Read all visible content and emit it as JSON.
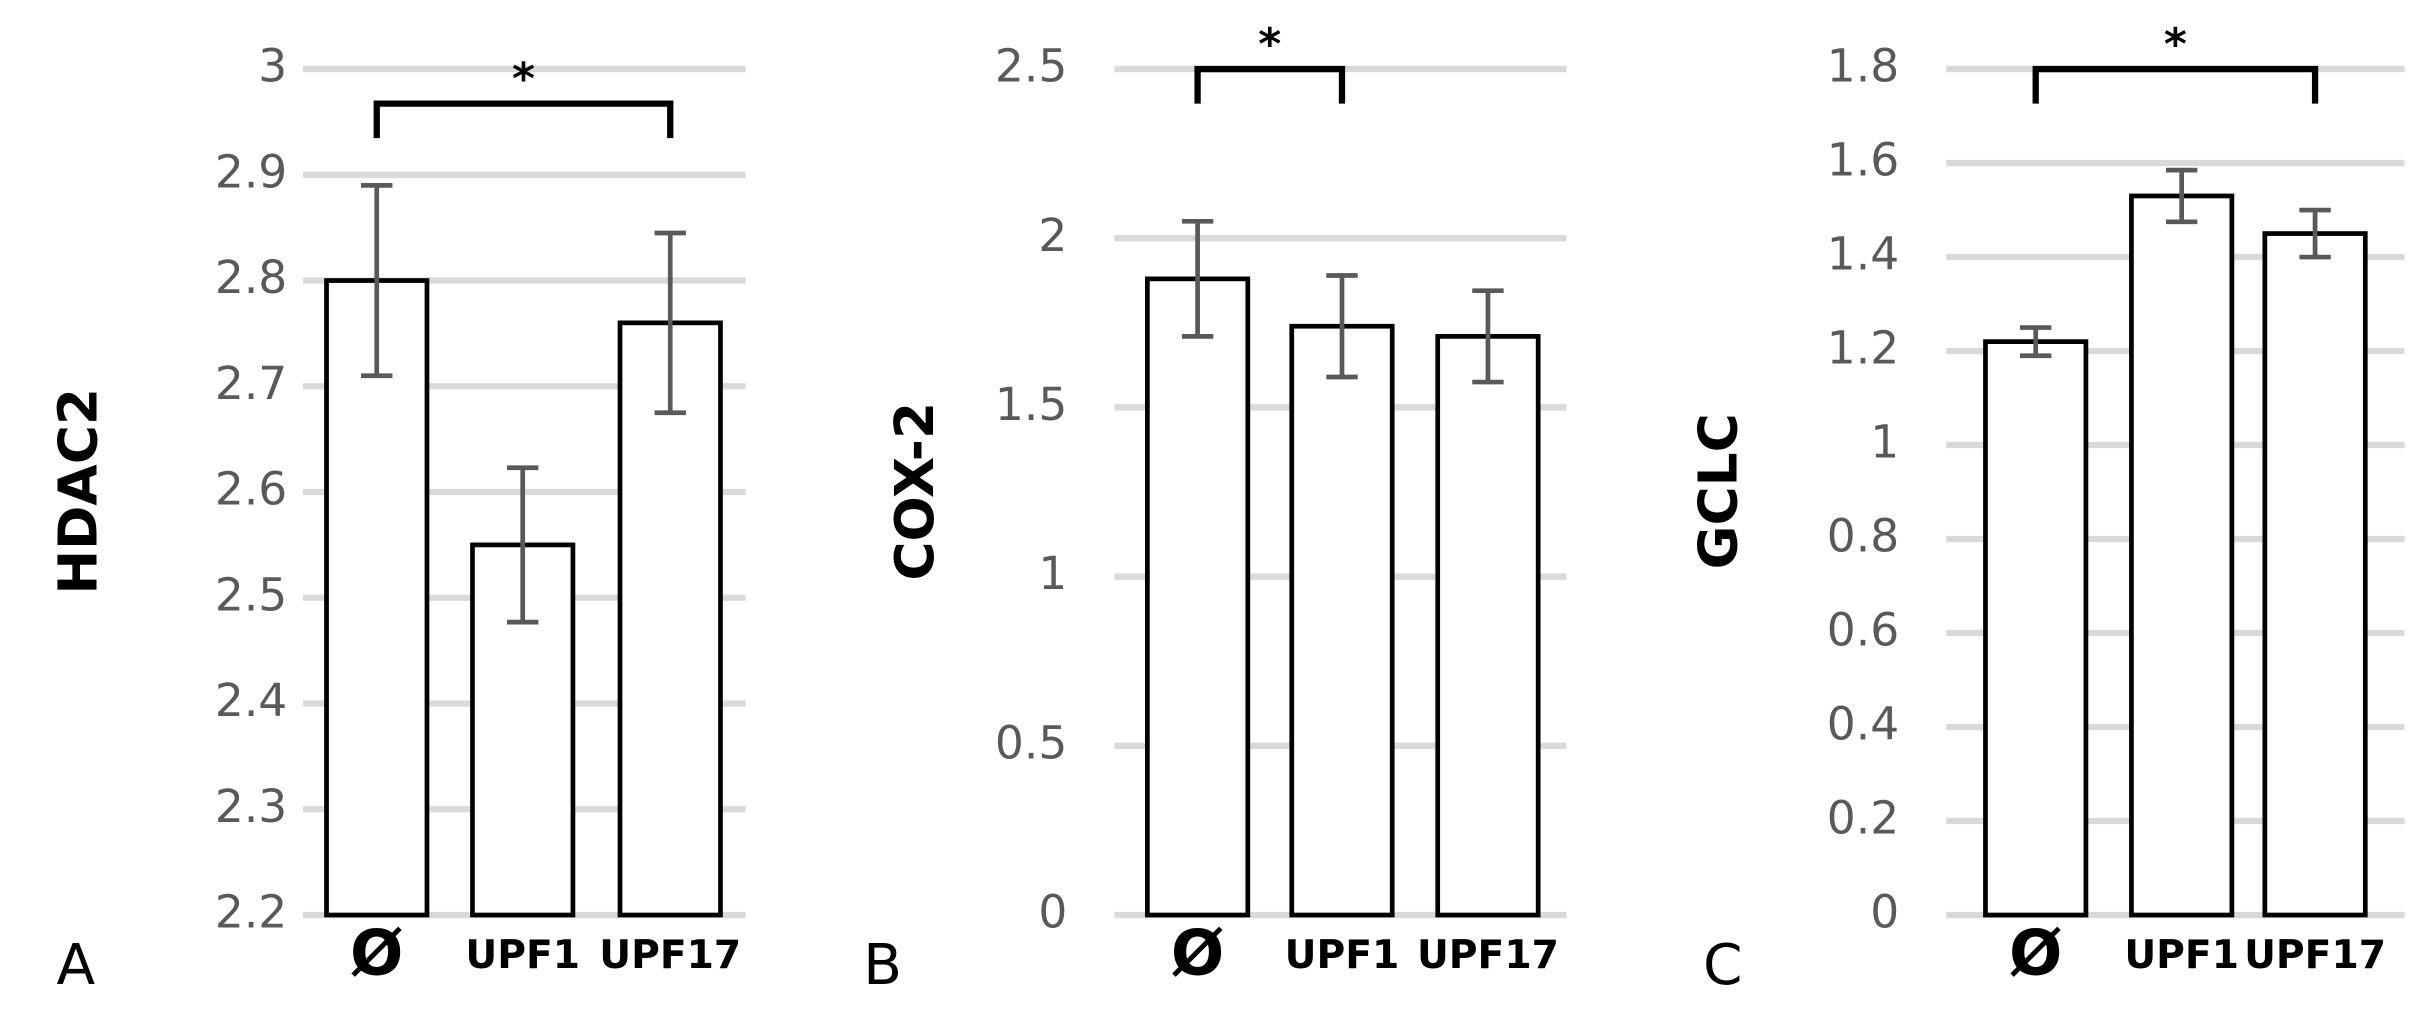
{
  "chart_data": [
    {
      "type": "bar",
      "panel": "A",
      "ylabel": "HDAC2",
      "categories": [
        "Ø",
        "UPF1",
        "UPF17"
      ],
      "values": [
        2.8,
        2.55,
        2.76
      ],
      "errors": [
        0.09,
        0.073,
        0.085
      ],
      "color": "#ffffff",
      "ylim": [
        2.2,
        3
      ],
      "yticks": [
        2.2,
        2.3,
        2.4,
        2.5,
        2.6,
        2.7,
        2.8,
        2.9,
        3
      ],
      "grid": true,
      "significance": {
        "label": "*",
        "between": [
          "Ø",
          "UPF17"
        ]
      }
    },
    {
      "type": "bar",
      "panel": "B",
      "ylabel": "COX-2",
      "categories": [
        "Ø",
        "UPF1",
        "UPF17"
      ],
      "values": [
        1.88,
        1.74,
        1.71
      ],
      "errors": [
        0.17,
        0.15,
        0.135
      ],
      "color": "#ffffff",
      "ylim": [
        0,
        2.5
      ],
      "yticks": [
        0,
        0.5,
        1,
        1.5,
        2,
        2.5
      ],
      "grid": true,
      "significance": {
        "label": "*",
        "between": [
          "Ø",
          "UPF1"
        ]
      }
    },
    {
      "type": "bar",
      "panel": "C",
      "ylabel": "GCLC",
      "categories": [
        "Ø",
        "UPF1",
        "UPF17"
      ],
      "values": [
        1.22,
        1.53,
        1.45
      ],
      "errors": [
        0.03,
        0.055,
        0.05
      ],
      "color": "#ffffff",
      "ylim": [
        0,
        1.8
      ],
      "yticks": [
        0,
        0.2,
        0.4,
        0.6,
        0.8,
        1,
        1.2,
        1.4,
        1.6,
        1.8
      ],
      "grid": true,
      "significance": {
        "label": "*",
        "between": [
          "Ø",
          "UPF17"
        ]
      }
    }
  ]
}
